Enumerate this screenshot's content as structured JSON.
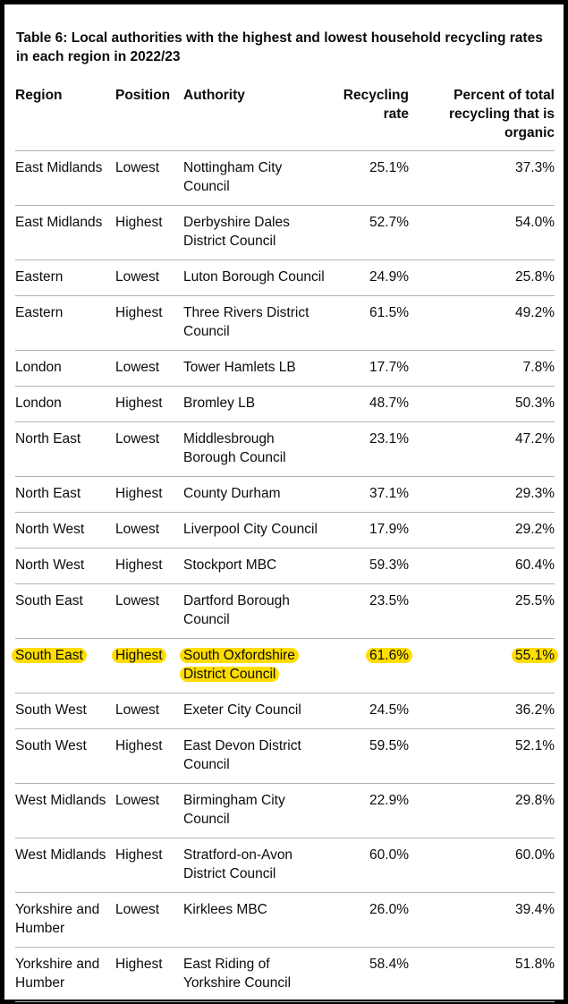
{
  "caption": "Table 6: Local authorities with the highest and lowest household recycling rates in each region in 2022/23",
  "highlight_color": "#ffdd00",
  "headers": {
    "region": "Region",
    "position": "Position",
    "authority": "Authority",
    "rate": "Recycling rate",
    "organic": "Percent of total recycling that is organic"
  },
  "rows": [
    {
      "region": "East Midlands",
      "position": "Lowest",
      "authority": "Nottingham City Council",
      "rate": "25.1%",
      "organic": "37.3%"
    },
    {
      "region": "East Midlands",
      "position": "Highest",
      "authority": "Derbyshire Dales District Council",
      "rate": "52.7%",
      "organic": "54.0%"
    },
    {
      "region": "Eastern",
      "position": "Lowest",
      "authority": "Luton Borough Council",
      "rate": "24.9%",
      "organic": "25.8%"
    },
    {
      "region": "Eastern",
      "position": "Highest",
      "authority": "Three Rivers District Council",
      "rate": "61.5%",
      "organic": "49.2%"
    },
    {
      "region": "London",
      "position": "Lowest",
      "authority": "Tower Hamlets LB",
      "rate": "17.7%",
      "organic": "7.8%"
    },
    {
      "region": "London",
      "position": "Highest",
      "authority": "Bromley LB",
      "rate": "48.7%",
      "organic": "50.3%"
    },
    {
      "region": "North East",
      "position": "Lowest",
      "authority": "Middlesbrough Borough Council",
      "rate": "23.1%",
      "organic": "47.2%"
    },
    {
      "region": "North East",
      "position": "Highest",
      "authority": "County Durham",
      "rate": "37.1%",
      "organic": "29.3%"
    },
    {
      "region": "North West",
      "position": "Lowest",
      "authority": "Liverpool City Council",
      "rate": "17.9%",
      "organic": "29.2%"
    },
    {
      "region": "North West",
      "position": "Highest",
      "authority": "Stockport MBC",
      "rate": "59.3%",
      "organic": "60.4%"
    },
    {
      "region": "South East",
      "position": "Lowest",
      "authority": "Dartford Borough Council",
      "rate": "23.5%",
      "organic": "25.5%"
    },
    {
      "region": "South East",
      "position": "Highest",
      "authority": "South Oxfordshire District Council",
      "rate": "61.6%",
      "organic": "55.1%",
      "highlighted": true
    },
    {
      "region": "South West",
      "position": "Lowest",
      "authority": "Exeter City Council",
      "rate": "24.5%",
      "organic": "36.2%"
    },
    {
      "region": "South West",
      "position": "Highest",
      "authority": "East Devon District Council",
      "rate": "59.5%",
      "organic": "52.1%"
    },
    {
      "region": "West Midlands",
      "position": "Lowest",
      "authority": "Birmingham City Council",
      "rate": "22.9%",
      "organic": "29.8%"
    },
    {
      "region": "West Midlands",
      "position": "Highest",
      "authority": "Stratford-on-Avon District Council",
      "rate": "60.0%",
      "organic": "60.0%"
    },
    {
      "region": "Yorkshire and Humber",
      "position": "Lowest",
      "authority": "Kirklees MBC",
      "rate": "26.0%",
      "organic": "39.4%"
    },
    {
      "region": "Yorkshire and Humber",
      "position": "Highest",
      "authority": "East Riding of Yorkshire Council",
      "rate": "58.4%",
      "organic": "51.8%"
    }
  ]
}
